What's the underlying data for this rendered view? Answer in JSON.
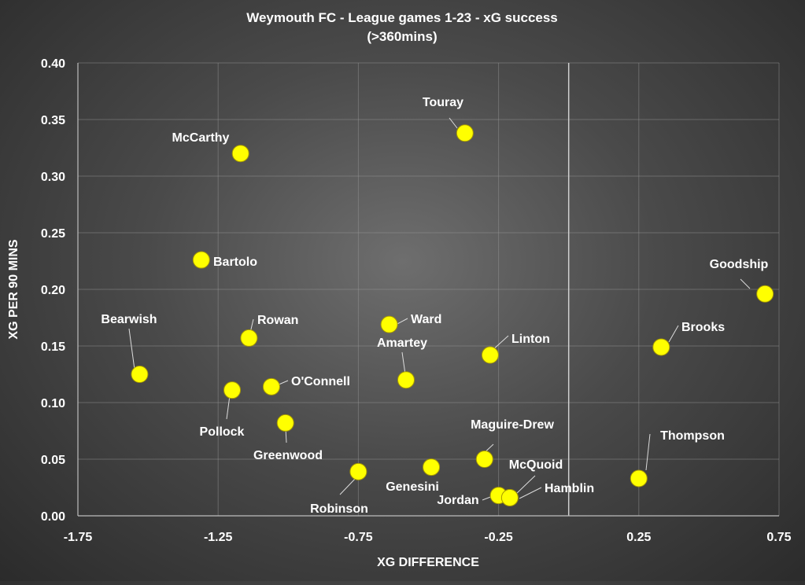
{
  "chart_data": {
    "type": "scatter",
    "title": "Weymouth FC - League games 1-23 - xG success",
    "subtitle": "(>360mins)",
    "xlabel": "XG DIFFERENCE",
    "ylabel": "XG PER 90 MINS",
    "xlim": [
      -1.75,
      0.75
    ],
    "ylim": [
      0,
      0.4
    ],
    "x_ticks": [
      "-1.75",
      "-1.25",
      "-0.75",
      "-0.25",
      "0.25",
      "0.75"
    ],
    "y_ticks": [
      "0.00",
      "0.05",
      "0.10",
      "0.15",
      "0.20",
      "0.25",
      "0.30",
      "0.35",
      "0.40"
    ],
    "grid": true,
    "reference_line_x": 0,
    "marker_color": "#ffff00",
    "points": [
      {
        "label": "Touray",
        "x": -0.37,
        "y": 0.338
      },
      {
        "label": "McCarthy",
        "x": -1.17,
        "y": 0.32
      },
      {
        "label": "Bartolo",
        "x": -1.31,
        "y": 0.226
      },
      {
        "label": "Goodship",
        "x": 0.7,
        "y": 0.196
      },
      {
        "label": "Bearwish",
        "x": -1.53,
        "y": 0.125
      },
      {
        "label": "Rowan",
        "x": -1.14,
        "y": 0.157
      },
      {
        "label": "Ward",
        "x": -0.64,
        "y": 0.169
      },
      {
        "label": "Amartey",
        "x": -0.58,
        "y": 0.12
      },
      {
        "label": "Linton",
        "x": -0.28,
        "y": 0.142
      },
      {
        "label": "Brooks",
        "x": 0.33,
        "y": 0.149
      },
      {
        "label": "O'Connell",
        "x": -1.06,
        "y": 0.114
      },
      {
        "label": "Pollock",
        "x": -1.2,
        "y": 0.111
      },
      {
        "label": "Greenwood",
        "x": -1.01,
        "y": 0.082
      },
      {
        "label": "Maguire-Drew",
        "x": -0.3,
        "y": 0.05
      },
      {
        "label": "Thompson",
        "x": 0.25,
        "y": 0.033
      },
      {
        "label": "Robinson",
        "x": -0.75,
        "y": 0.039
      },
      {
        "label": "Genesini",
        "x": -0.49,
        "y": 0.043
      },
      {
        "label": "McQuoid",
        "x": -0.21,
        "y": 0.016
      },
      {
        "label": "Jordan",
        "x": -0.25,
        "y": 0.018
      },
      {
        "label": "Hamblin",
        "x": -0.21,
        "y": 0.016
      }
    ]
  }
}
